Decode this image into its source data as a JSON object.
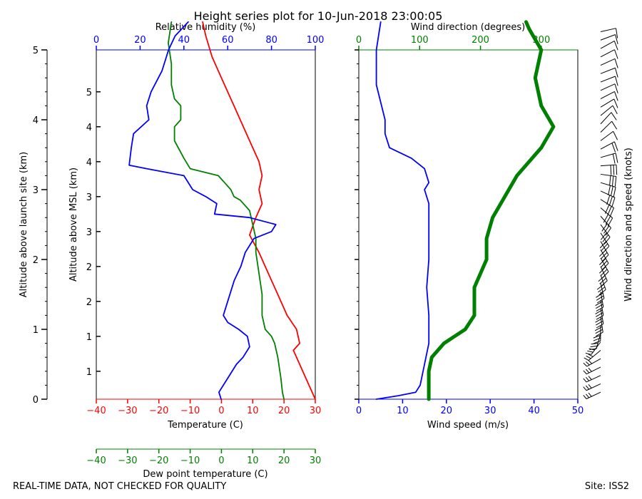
{
  "chart_data": {
    "type": "line",
    "title": "Height series plot for 10-Jun-2018 23:00:05",
    "footer_left": "REAL-TIME DATA, NOT CHECKED FOR QUALITY",
    "footer_right": "Site: ISS2",
    "colors": {
      "temperature": "#ff0000",
      "dewpoint": "#008000",
      "rh": "#0000ff",
      "wind_speed": "#0000ff",
      "wind_dir": "#008000",
      "axis": "#000000"
    },
    "left_panel": {
      "y_outer": {
        "label": "Altitude above launch site (km)",
        "range": [
          0,
          5
        ],
        "ticks": [
          "0",
          "1",
          "2",
          "3",
          "4",
          "5"
        ]
      },
      "y_inner": {
        "label": "Altitude above MSL (km)",
        "range": [
          0.6,
          5.6
        ],
        "ticks": [
          "1",
          "1",
          "2",
          "2",
          "3",
          "3",
          "4",
          "4",
          "5"
        ]
      },
      "x_temperature": {
        "label": "Temperature (C)",
        "range": [
          -40,
          30
        ],
        "ticks": [
          "−40",
          "−30",
          "−20",
          "−10",
          "0",
          "10",
          "20",
          "30"
        ]
      },
      "x_dewpoint": {
        "label": "Dew point temperature (C)",
        "range": [
          -40,
          30
        ],
        "ticks": [
          "−40",
          "−30",
          "−20",
          "−10",
          "0",
          "10",
          "20",
          "30"
        ]
      },
      "x_rh": {
        "label": "Relative humidity (%)",
        "range": [
          0,
          100
        ],
        "ticks": [
          "0",
          "20",
          "40",
          "60",
          "80",
          "100"
        ]
      },
      "series": [
        {
          "name": "Temperature",
          "unit": "C",
          "points": [
            [
              30,
              0
            ],
            [
              27,
              0.3
            ],
            [
              24,
              0.6
            ],
            [
              23,
              0.7
            ],
            [
              25,
              0.8
            ],
            [
              24,
              1.0
            ],
            [
              21,
              1.2
            ],
            [
              18,
              1.5
            ],
            [
              15,
              1.8
            ],
            [
              12,
              2.1
            ],
            [
              9,
              2.35
            ],
            [
              11,
              2.6
            ],
            [
              13,
              2.8
            ],
            [
              12,
              3.0
            ],
            [
              13,
              3.2
            ],
            [
              12,
              3.4
            ],
            [
              8,
              3.8
            ],
            [
              4,
              4.2
            ],
            [
              0,
              4.6
            ],
            [
              -3,
              4.9
            ],
            [
              -5,
              5.2
            ],
            [
              -6,
              5.4
            ]
          ]
        },
        {
          "name": "Dew point",
          "unit": "C",
          "points": [
            [
              20,
              0
            ],
            [
              19.5,
              0.1
            ],
            [
              19,
              0.3
            ],
            [
              18,
              0.6
            ],
            [
              17,
              0.8
            ],
            [
              16,
              0.9
            ],
            [
              14,
              1.0
            ],
            [
              13,
              1.2
            ],
            [
              13,
              1.5
            ],
            [
              12,
              1.8
            ],
            [
              11,
              2.1
            ],
            [
              11,
              2.3
            ],
            [
              10,
              2.5
            ],
            [
              9,
              2.7
            ],
            [
              6,
              2.85
            ],
            [
              4,
              2.9
            ],
            [
              3,
              3.0
            ],
            [
              1,
              3.1
            ],
            [
              -1,
              3.2
            ],
            [
              -10,
              3.3
            ],
            [
              -12,
              3.45
            ],
            [
              -15,
              3.7
            ],
            [
              -15,
              3.9
            ],
            [
              -13,
              4.0
            ],
            [
              -13,
              4.2
            ],
            [
              -15,
              4.3
            ],
            [
              -16,
              4.5
            ],
            [
              -16,
              4.8
            ],
            [
              -17,
              5.1
            ],
            [
              -16,
              5.4
            ]
          ]
        }
      ],
      "rh_series": {
        "name": "Relative humidity",
        "unit": "%",
        "points": [
          [
            57,
            0
          ],
          [
            56,
            0.1
          ],
          [
            60,
            0.3
          ],
          [
            64,
            0.5
          ],
          [
            67,
            0.6
          ],
          [
            70,
            0.75
          ],
          [
            69,
            0.9
          ],
          [
            65,
            1.0
          ],
          [
            60,
            1.1
          ],
          [
            58,
            1.2
          ],
          [
            60,
            1.4
          ],
          [
            63,
            1.7
          ],
          [
            66,
            1.9
          ],
          [
            68,
            2.1
          ],
          [
            72,
            2.3
          ],
          [
            80,
            2.4
          ],
          [
            82,
            2.5
          ],
          [
            70,
            2.6
          ],
          [
            54,
            2.65
          ],
          [
            55,
            2.8
          ],
          [
            50,
            2.9
          ],
          [
            44,
            3.0
          ],
          [
            40,
            3.2
          ],
          [
            23,
            3.3
          ],
          [
            15,
            3.35
          ],
          [
            16,
            3.6
          ],
          [
            17,
            3.8
          ],
          [
            24,
            4.0
          ],
          [
            23,
            4.2
          ],
          [
            25,
            4.4
          ],
          [
            30,
            4.7
          ],
          [
            33,
            5.0
          ],
          [
            36,
            5.2
          ],
          [
            42,
            5.4
          ]
        ]
      }
    },
    "right_panel": {
      "x_wind_speed": {
        "label": "Wind speed (m/s)",
        "range": [
          0,
          50
        ],
        "ticks": [
          "0",
          "10",
          "20",
          "30",
          "40",
          "50"
        ]
      },
      "x_wind_dir": {
        "label": "Wind direction (degrees)",
        "range": [
          0,
          360
        ],
        "ticks": [
          "0",
          "100",
          "200",
          "300"
        ]
      },
      "barbs_label": "Wind direction and speed (knots)",
      "wind_speed": {
        "name": "Wind speed",
        "unit": "m/s",
        "points": [
          [
            4,
            0
          ],
          [
            9,
            0.05
          ],
          [
            13,
            0.1
          ],
          [
            14,
            0.2
          ],
          [
            15,
            0.5
          ],
          [
            16,
            0.8
          ],
          [
            16,
            1.0
          ],
          [
            16,
            1.2
          ],
          [
            15.5,
            1.6
          ],
          [
            16,
            2.0
          ],
          [
            16,
            2.3
          ],
          [
            16,
            2.5
          ],
          [
            16,
            2.8
          ],
          [
            15,
            3.0
          ],
          [
            16,
            3.1
          ],
          [
            15,
            3.3
          ],
          [
            12,
            3.45
          ],
          [
            7,
            3.6
          ],
          [
            6,
            3.8
          ],
          [
            6,
            4.0
          ],
          [
            4,
            4.5
          ],
          [
            4,
            5.0
          ],
          [
            5,
            5.4
          ]
        ]
      },
      "wind_direction": {
        "name": "Wind direction",
        "unit": "degrees",
        "points": [
          [
            115,
            0
          ],
          [
            115,
            0.4
          ],
          [
            120,
            0.6
          ],
          [
            140,
            0.8
          ],
          [
            175,
            1.0
          ],
          [
            190,
            1.2
          ],
          [
            190,
            1.6
          ],
          [
            210,
            2.0
          ],
          [
            210,
            2.3
          ],
          [
            220,
            2.6
          ],
          [
            240,
            2.9
          ],
          [
            260,
            3.2
          ],
          [
            300,
            3.6
          ],
          [
            320,
            3.9
          ],
          [
            300,
            4.2
          ],
          [
            290,
            4.6
          ],
          [
            300,
            5.0
          ],
          [
            280,
            5.3
          ],
          [
            275,
            5.4
          ]
        ]
      }
    }
  }
}
